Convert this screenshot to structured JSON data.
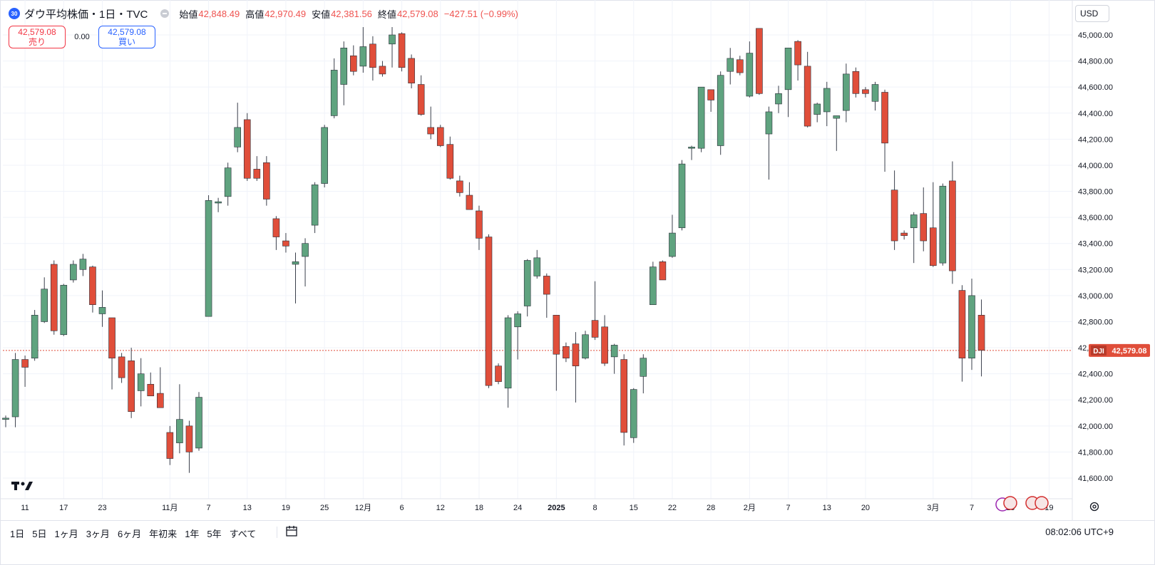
{
  "header": {
    "symbol_badge": "30",
    "title": "ダウ平均株価・1日・TVC",
    "ohlc": {
      "open_label": "始値",
      "open": "42,848.49",
      "high_label": "高値",
      "high": "42,970.49",
      "low_label": "安値",
      "low": "42,381.56",
      "close_label": "終値",
      "close": "42,579.08",
      "change": "−427.51 (−0.99%)"
    }
  },
  "trade": {
    "sell_price": "42,579.08",
    "sell_label": "売り",
    "spread": "0.00",
    "buy_price": "42,579.08",
    "buy_label": "買い"
  },
  "currency": "USD",
  "price_tag": {
    "symbol": "DJI",
    "value": "42,579.08"
  },
  "bottom_bar": {
    "ranges": [
      "1日",
      "5日",
      "1ヶ月",
      "3ヶ月",
      "6ヶ月",
      "年初来",
      "1年",
      "5年",
      "すべて"
    ],
    "clock": "08:02:06 UTC+9"
  },
  "colors": {
    "up": "#5fa37f",
    "down": "#e04e3a",
    "price_line": "#e04e3a",
    "grid": "#f0f3fa"
  },
  "icons": [
    "tradingview-logo-icon",
    "calendar-range-icon",
    "settings-icon",
    "eye-icon",
    "event-flag-icon"
  ],
  "chart_data": {
    "type": "candlestick",
    "symbol": "DJI",
    "last_price": 42579.08,
    "ylim": [
      41450,
      45150
    ],
    "y_ticks": [
      41600,
      41800,
      42000,
      42200,
      42400,
      42600,
      42800,
      43000,
      43200,
      43400,
      43600,
      43800,
      44000,
      44200,
      44400,
      44600,
      44800,
      45000
    ],
    "y_tick_labels": [
      "41,600.00",
      "41,800.00",
      "42,000.00",
      "42,200.00",
      "42,400.00",
      "42,600.00",
      "42,800.00",
      "43,000.00",
      "43,200.00",
      "43,400.00",
      "43,600.00",
      "43,800.00",
      "44,000.00",
      "44,200.00",
      "44,400.00",
      "44,600.00",
      "44,800.00",
      "45,000.00"
    ],
    "x_ticks": [
      {
        "label": "11",
        "index": 2
      },
      {
        "label": "17",
        "index": 6
      },
      {
        "label": "23",
        "index": 10
      },
      {
        "label": "11月",
        "index": 17
      },
      {
        "label": "7",
        "index": 21
      },
      {
        "label": "13",
        "index": 25
      },
      {
        "label": "19",
        "index": 29
      },
      {
        "label": "25",
        "index": 33
      },
      {
        "label": "12月",
        "index": 37
      },
      {
        "label": "6",
        "index": 41
      },
      {
        "label": "12",
        "index": 45
      },
      {
        "label": "18",
        "index": 49
      },
      {
        "label": "24",
        "index": 53
      },
      {
        "label": "2025",
        "index": 57
      },
      {
        "label": "8",
        "index": 61
      },
      {
        "label": "15",
        "index": 65
      },
      {
        "label": "22",
        "index": 69
      },
      {
        "label": "28",
        "index": 73
      },
      {
        "label": "2月",
        "index": 77
      },
      {
        "label": "7",
        "index": 81
      },
      {
        "label": "13",
        "index": 85
      },
      {
        "label": "20",
        "index": 89
      },
      {
        "label": "3月",
        "index": 96
      },
      {
        "label": "7",
        "index": 100
      },
      {
        "label": "13",
        "index": 104
      },
      {
        "label": "19",
        "index": 108
      }
    ],
    "candles": [
      {
        "o": 42050,
        "h": 42080,
        "l": 41990,
        "c": 42060
      },
      {
        "o": 42070,
        "h": 42560,
        "l": 41990,
        "c": 42510
      },
      {
        "o": 42510,
        "h": 42540,
        "l": 42300,
        "c": 42450
      },
      {
        "o": 42520,
        "h": 42890,
        "l": 42500,
        "c": 42850
      },
      {
        "o": 42800,
        "h": 43140,
        "l": 42790,
        "c": 43050
      },
      {
        "o": 43240,
        "h": 43270,
        "l": 42700,
        "c": 42730
      },
      {
        "o": 42700,
        "h": 43090,
        "l": 42690,
        "c": 43080
      },
      {
        "o": 43120,
        "h": 43270,
        "l": 43100,
        "c": 43240
      },
      {
        "o": 43200,
        "h": 43320,
        "l": 43150,
        "c": 43280
      },
      {
        "o": 43220,
        "h": 43230,
        "l": 42870,
        "c": 42930
      },
      {
        "o": 42860,
        "h": 43040,
        "l": 42760,
        "c": 42910
      },
      {
        "o": 42830,
        "h": 42830,
        "l": 42280,
        "c": 42520
      },
      {
        "o": 42530,
        "h": 42560,
        "l": 42330,
        "c": 42370
      },
      {
        "o": 42500,
        "h": 42600,
        "l": 42060,
        "c": 42110
      },
      {
        "o": 42270,
        "h": 42520,
        "l": 42150,
        "c": 42400
      },
      {
        "o": 42320,
        "h": 42410,
        "l": 42240,
        "c": 42230
      },
      {
        "o": 42250,
        "h": 42450,
        "l": 42170,
        "c": 42140
      },
      {
        "o": 41950,
        "h": 42000,
        "l": 41700,
        "c": 41750
      },
      {
        "o": 41870,
        "h": 42320,
        "l": 41790,
        "c": 42050
      },
      {
        "o": 42000,
        "h": 42040,
        "l": 41640,
        "c": 41800
      },
      {
        "o": 41830,
        "h": 42260,
        "l": 41810,
        "c": 42220
      },
      {
        "o": 42840,
        "h": 43770,
        "l": 42840,
        "c": 43730
      },
      {
        "o": 43710,
        "h": 43750,
        "l": 43640,
        "c": 43720
      },
      {
        "o": 43760,
        "h": 44020,
        "l": 43690,
        "c": 43980
      },
      {
        "o": 44140,
        "h": 44480,
        "l": 44100,
        "c": 44290
      },
      {
        "o": 44350,
        "h": 44400,
        "l": 43880,
        "c": 43900
      },
      {
        "o": 43970,
        "h": 44070,
        "l": 43880,
        "c": 43900
      },
      {
        "o": 44020,
        "h": 44070,
        "l": 43690,
        "c": 43740
      },
      {
        "o": 43590,
        "h": 43610,
        "l": 43350,
        "c": 43450
      },
      {
        "o": 43420,
        "h": 43480,
        "l": 43330,
        "c": 43380
      },
      {
        "o": 43240,
        "h": 43330,
        "l": 42940,
        "c": 43260
      },
      {
        "o": 43300,
        "h": 43440,
        "l": 43070,
        "c": 43400
      },
      {
        "o": 43540,
        "h": 43870,
        "l": 43480,
        "c": 43850
      },
      {
        "o": 43860,
        "h": 44310,
        "l": 43830,
        "c": 44290
      },
      {
        "o": 44380,
        "h": 44820,
        "l": 44360,
        "c": 44730
      },
      {
        "o": 44620,
        "h": 44950,
        "l": 44460,
        "c": 44900
      },
      {
        "o": 44840,
        "h": 44920,
        "l": 44690,
        "c": 44720
      },
      {
        "o": 44760,
        "h": 45060,
        "l": 44710,
        "c": 44910
      },
      {
        "o": 44930,
        "h": 44990,
        "l": 44650,
        "c": 44750
      },
      {
        "o": 44760,
        "h": 44800,
        "l": 44680,
        "c": 44700
      },
      {
        "o": 44930,
        "h": 45060,
        "l": 44750,
        "c": 45000
      },
      {
        "o": 45010,
        "h": 45020,
        "l": 44720,
        "c": 44750
      },
      {
        "o": 44820,
        "h": 44850,
        "l": 44590,
        "c": 44630
      },
      {
        "o": 44620,
        "h": 44690,
        "l": 44380,
        "c": 44390
      },
      {
        "o": 44290,
        "h": 44450,
        "l": 44200,
        "c": 44240
      },
      {
        "o": 44290,
        "h": 44310,
        "l": 44140,
        "c": 44150
      },
      {
        "o": 44160,
        "h": 44220,
        "l": 43890,
        "c": 43900
      },
      {
        "o": 43880,
        "h": 43920,
        "l": 43760,
        "c": 43790
      },
      {
        "o": 43770,
        "h": 43870,
        "l": 43680,
        "c": 43660
      },
      {
        "o": 43650,
        "h": 43690,
        "l": 43350,
        "c": 43440
      },
      {
        "o": 43450,
        "h": 43470,
        "l": 42290,
        "c": 42310
      },
      {
        "o": 42460,
        "h": 42480,
        "l": 42320,
        "c": 42340
      },
      {
        "o": 42290,
        "h": 42850,
        "l": 42140,
        "c": 42830
      },
      {
        "o": 42760,
        "h": 42880,
        "l": 42510,
        "c": 42860
      },
      {
        "o": 42920,
        "h": 43280,
        "l": 42840,
        "c": 43270
      },
      {
        "o": 43150,
        "h": 43350,
        "l": 43130,
        "c": 43290
      },
      {
        "o": 43150,
        "h": 43170,
        "l": 42830,
        "c": 43010
      },
      {
        "o": 42850,
        "h": 42830,
        "l": 42270,
        "c": 42550
      },
      {
        "o": 42610,
        "h": 42640,
        "l": 42490,
        "c": 42520
      },
      {
        "o": 42630,
        "h": 42720,
        "l": 42180,
        "c": 42460
      },
      {
        "o": 42520,
        "h": 42730,
        "l": 42510,
        "c": 42700
      },
      {
        "o": 42810,
        "h": 43110,
        "l": 42660,
        "c": 42680
      },
      {
        "o": 42760,
        "h": 42850,
        "l": 42460,
        "c": 42480
      },
      {
        "o": 42530,
        "h": 42630,
        "l": 42400,
        "c": 42620
      },
      {
        "o": 42510,
        "h": 42550,
        "l": 41850,
        "c": 41950
      },
      {
        "o": 41910,
        "h": 42290,
        "l": 41870,
        "c": 42280
      },
      {
        "o": 42380,
        "h": 42550,
        "l": 42250,
        "c": 42520
      },
      {
        "o": 42930,
        "h": 43260,
        "l": 42930,
        "c": 43220
      },
      {
        "o": 43260,
        "h": 43270,
        "l": 43130,
        "c": 43120
      },
      {
        "o": 43300,
        "h": 43620,
        "l": 43290,
        "c": 43480
      },
      {
        "o": 43520,
        "h": 44040,
        "l": 43500,
        "c": 44010
      },
      {
        "o": 44130,
        "h": 44150,
        "l": 44040,
        "c": 44140
      },
      {
        "o": 44130,
        "h": 44570,
        "l": 44100,
        "c": 44600
      },
      {
        "o": 44580,
        "h": 44580,
        "l": 44410,
        "c": 44500
      },
      {
        "o": 44150,
        "h": 44720,
        "l": 44080,
        "c": 44690
      },
      {
        "o": 44720,
        "h": 44900,
        "l": 44620,
        "c": 44820
      },
      {
        "o": 44810,
        "h": 44840,
        "l": 44690,
        "c": 44710
      },
      {
        "o": 44530,
        "h": 44950,
        "l": 44520,
        "c": 44860
      },
      {
        "o": 45050,
        "h": 45050,
        "l": 44540,
        "c": 44550
      },
      {
        "o": 44240,
        "h": 44450,
        "l": 43890,
        "c": 44410
      },
      {
        "o": 44470,
        "h": 44610,
        "l": 44400,
        "c": 44550
      },
      {
        "o": 44580,
        "h": 44900,
        "l": 44370,
        "c": 44900
      },
      {
        "o": 44950,
        "h": 44960,
        "l": 44650,
        "c": 44770
      },
      {
        "o": 44760,
        "h": 44870,
        "l": 44290,
        "c": 44300
      },
      {
        "o": 44390,
        "h": 44480,
        "l": 44330,
        "c": 44470
      },
      {
        "o": 44410,
        "h": 44640,
        "l": 44300,
        "c": 44590
      },
      {
        "o": 44360,
        "h": 44380,
        "l": 44110,
        "c": 44380
      },
      {
        "o": 44420,
        "h": 44780,
        "l": 44330,
        "c": 44700
      },
      {
        "o": 44720,
        "h": 44750,
        "l": 44520,
        "c": 44550
      },
      {
        "o": 44580,
        "h": 44600,
        "l": 44520,
        "c": 44550
      },
      {
        "o": 44490,
        "h": 44640,
        "l": 44420,
        "c": 44620
      },
      {
        "o": 44560,
        "h": 44580,
        "l": 43950,
        "c": 44170
      },
      {
        "o": 43810,
        "h": 43960,
        "l": 43350,
        "c": 43420
      },
      {
        "o": 43480,
        "h": 43500,
        "l": 43430,
        "c": 43460
      },
      {
        "o": 43520,
        "h": 43640,
        "l": 43250,
        "c": 43620
      },
      {
        "o": 43630,
        "h": 43830,
        "l": 43340,
        "c": 43420
      },
      {
        "o": 43520,
        "h": 43870,
        "l": 43220,
        "c": 43230
      },
      {
        "o": 43250,
        "h": 43860,
        "l": 43230,
        "c": 43840
      },
      {
        "o": 43880,
        "h": 44030,
        "l": 43090,
        "c": 43190
      },
      {
        "o": 43040,
        "h": 43080,
        "l": 42340,
        "c": 42520
      },
      {
        "o": 42520,
        "h": 43130,
        "l": 42430,
        "c": 43000
      },
      {
        "o": 42850,
        "h": 42970,
        "l": 42380,
        "c": 42580
      }
    ]
  }
}
